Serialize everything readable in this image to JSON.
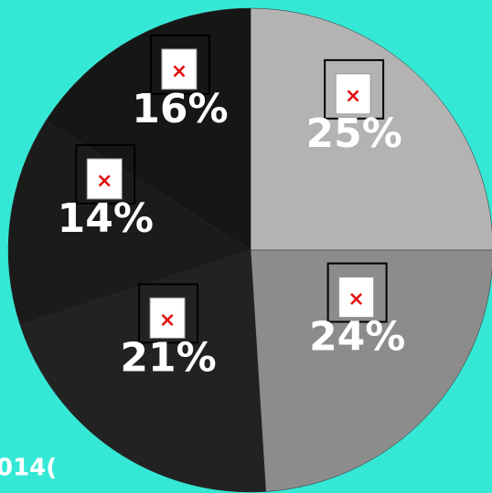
{
  "chart_data": {
    "type": "pie",
    "categories": [
      null,
      null,
      null,
      null,
      null
    ],
    "values": [
      25,
      24,
      21,
      14,
      16
    ],
    "value_labels": [
      "25%",
      "24%",
      "21%",
      "14%",
      "16%"
    ],
    "colors": [
      "#b3b3b3",
      "#8c8c8c",
      "#222222",
      "#1b1b1b",
      "#161616"
    ],
    "start_angle": 0,
    "direction": "clockwise",
    "footer_text": "014("
  }
}
